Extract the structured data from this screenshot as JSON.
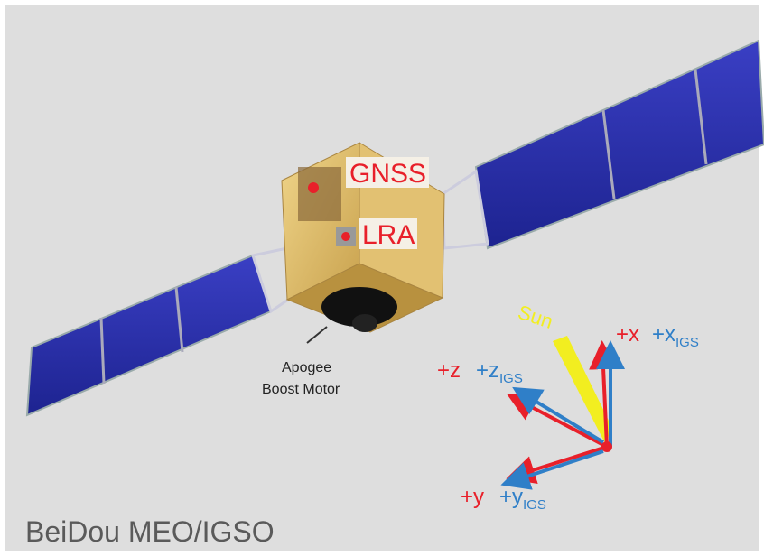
{
  "labels": {
    "gnss": "GNSS",
    "lra": "LRA",
    "apogee": [
      "Apogee",
      "Boost Motor"
    ],
    "sun": "Sun",
    "x": "+x",
    "x_igs": {
      "main": "+x",
      "sub": "IGS"
    },
    "z": "+z",
    "z_igs": {
      "main": "+z",
      "sub": "IGS"
    },
    "y": "+y",
    "y_igs": {
      "main": "+y",
      "sub": "IGS"
    }
  },
  "caption": "BeiDou MEO/IGSO"
}
